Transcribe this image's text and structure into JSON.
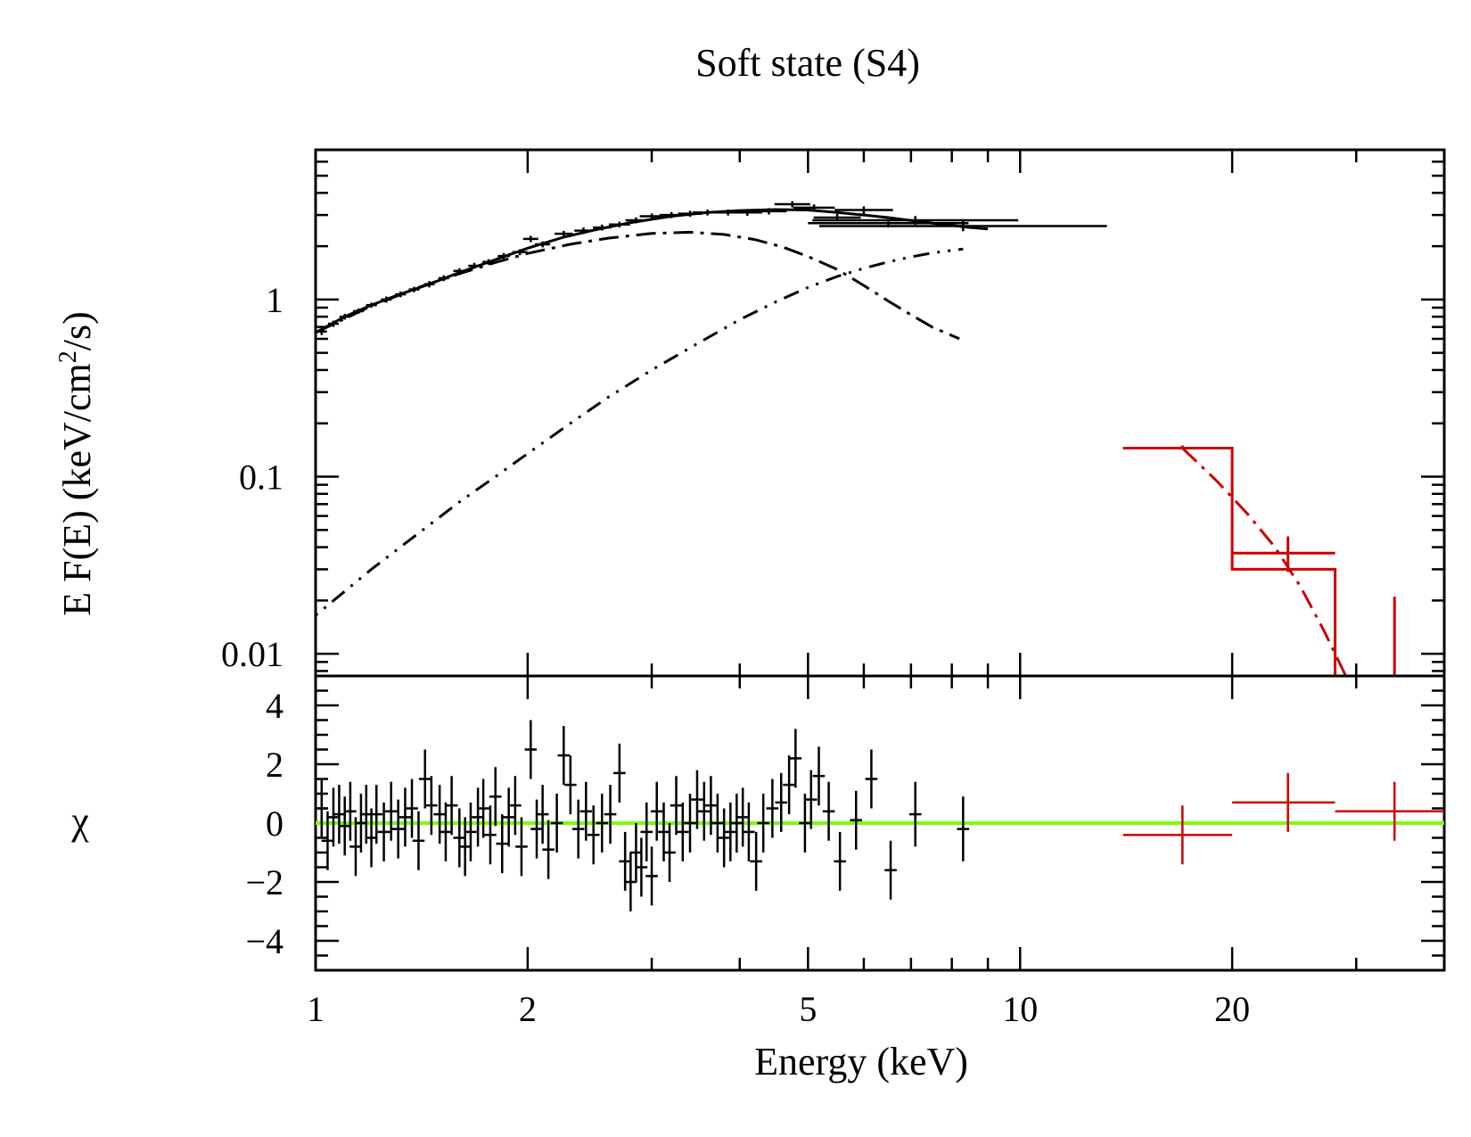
{
  "chart_data": {
    "title": "Soft state (S4)",
    "xlabel": "Energy (keV)",
    "x_scale": "log",
    "xlim": [
      1,
      40
    ],
    "x_ticks": [
      {
        "value": 1,
        "label": "1"
      },
      {
        "value": 2,
        "label": "2"
      },
      {
        "value": 5,
        "label": "5"
      },
      {
        "value": 10,
        "label": "10"
      },
      {
        "value": 20,
        "label": "20"
      }
    ],
    "panels": [
      {
        "id": "spectrum",
        "type": "line",
        "ylabel_main": "E F(E) (keV/cm",
        "ylabel_sup": "2",
        "ylabel_tail": "/s)",
        "y_scale": "log",
        "ylim": [
          0.0075,
          7.0
        ],
        "y_ticks": [
          {
            "value": 0.01,
            "label": "0.01"
          },
          {
            "value": 0.1,
            "label": "0.1"
          },
          {
            "value": 1,
            "label": "1"
          }
        ],
        "series": [
          {
            "role": "data",
            "color": "#000000",
            "points": [
              [
                1.02,
                0.66,
                0.01,
                0.03
              ],
              [
                1.06,
                0.73,
                0.01,
                0.03
              ],
              [
                1.1,
                0.8,
                0.01,
                0.03
              ],
              [
                1.15,
                0.86,
                0.01,
                0.03
              ],
              [
                1.2,
                0.93,
                0.01,
                0.03
              ],
              [
                1.26,
                1.0,
                0.015,
                0.04
              ],
              [
                1.32,
                1.07,
                0.015,
                0.04
              ],
              [
                1.38,
                1.14,
                0.015,
                0.04
              ],
              [
                1.45,
                1.22,
                0.015,
                0.05
              ],
              [
                1.52,
                1.32,
                0.015,
                0.05
              ],
              [
                1.6,
                1.45,
                0.02,
                0.05
              ],
              [
                1.68,
                1.55,
                0.02,
                0.06
              ],
              [
                1.76,
                1.63,
                0.02,
                0.06
              ],
              [
                1.85,
                1.76,
                0.02,
                0.07
              ],
              [
                1.95,
                1.85,
                0.025,
                0.07
              ],
              [
                2.02,
                2.2,
                0.025,
                0.09
              ],
              [
                2.1,
                2.05,
                0.025,
                0.08
              ],
              [
                2.25,
                2.35,
                0.03,
                0.09
              ],
              [
                2.4,
                2.45,
                0.03,
                0.1
              ],
              [
                2.55,
                2.55,
                0.03,
                0.1
              ],
              [
                2.7,
                2.65,
                0.035,
                0.1
              ],
              [
                2.85,
                2.8,
                0.035,
                0.11
              ],
              [
                3.0,
                2.95,
                0.04,
                0.11
              ],
              [
                3.2,
                3.0,
                0.04,
                0.12
              ],
              [
                3.4,
                3.05,
                0.04,
                0.12
              ],
              [
                3.6,
                3.1,
                0.05,
                0.12
              ],
              [
                3.85,
                3.1,
                0.05,
                0.12
              ],
              [
                4.1,
                3.1,
                0.05,
                0.13
              ],
              [
                4.4,
                3.15,
                0.06,
                0.13
              ],
              [
                4.75,
                3.45,
                0.06,
                0.14
              ],
              [
                5.1,
                3.3,
                0.07,
                0.14
              ],
              [
                5.5,
                2.9,
                0.08,
                0.14
              ],
              [
                6.0,
                3.2,
                0.1,
                0.16
              ],
              [
                6.5,
                2.7,
                0.3,
                0.15
              ],
              [
                7.1,
                2.8,
                0.4,
                0.16
              ],
              [
                8.3,
                2.6,
                0.6,
                0.17
              ]
            ]
          },
          {
            "role": "total_model",
            "color": "#000000",
            "style": "solid",
            "points": [
              [
                1.0,
                0.65
              ],
              [
                1.1,
                0.8
              ],
              [
                1.2,
                0.93
              ],
              [
                1.3,
                1.05
              ],
              [
                1.45,
                1.22
              ],
              [
                1.6,
                1.42
              ],
              [
                1.8,
                1.68
              ],
              [
                2.0,
                1.95
              ],
              [
                2.25,
                2.25
              ],
              [
                2.5,
                2.48
              ],
              [
                2.8,
                2.72
              ],
              [
                3.2,
                2.95
              ],
              [
                3.6,
                3.1
              ],
              [
                4.0,
                3.18
              ],
              [
                4.5,
                3.22
              ],
              [
                5.0,
                3.2
              ],
              [
                5.5,
                3.1
              ],
              [
                6.0,
                3.0
              ],
              [
                6.5,
                2.9
              ],
              [
                7.5,
                2.7
              ],
              [
                8.5,
                2.55
              ],
              [
                9.0,
                2.5
              ]
            ]
          },
          {
            "role": "disk_component",
            "color": "#000000",
            "style": "dash-dot",
            "points": [
              [
                1.0,
                0.65
              ],
              [
                1.2,
                0.92
              ],
              [
                1.4,
                1.17
              ],
              [
                1.6,
                1.4
              ],
              [
                1.8,
                1.62
              ],
              [
                2.0,
                1.82
              ],
              [
                2.3,
                2.05
              ],
              [
                2.6,
                2.22
              ],
              [
                3.0,
                2.36
              ],
              [
                3.4,
                2.4
              ],
              [
                3.8,
                2.33
              ],
              [
                4.2,
                2.18
              ],
              [
                4.6,
                1.98
              ],
              [
                5.0,
                1.75
              ],
              [
                5.5,
                1.48
              ],
              [
                6.0,
                1.2
              ],
              [
                6.5,
                0.98
              ],
              [
                7.0,
                0.82
              ],
              [
                7.5,
                0.7
              ],
              [
                8.2,
                0.6
              ]
            ]
          },
          {
            "role": "comptonization_component",
            "color": "#000000",
            "style": "dotted",
            "points": [
              [
                1.0,
                0.0165
              ],
              [
                1.2,
                0.03
              ],
              [
                1.4,
                0.048
              ],
              [
                1.6,
                0.072
              ],
              [
                1.8,
                0.1
              ],
              [
                2.0,
                0.135
              ],
              [
                2.3,
                0.2
              ],
              [
                2.6,
                0.28
              ],
              [
                3.0,
                0.4
              ],
              [
                3.5,
                0.57
              ],
              [
                4.0,
                0.77
              ],
              [
                4.5,
                0.97
              ],
              [
                5.0,
                1.17
              ],
              [
                5.5,
                1.35
              ],
              [
                6.0,
                1.5
              ],
              [
                6.5,
                1.63
              ],
              [
                7.0,
                1.74
              ],
              [
                7.5,
                1.83
              ],
              [
                8.3,
                1.93
              ]
            ]
          },
          {
            "role": "hard_xray_data",
            "color": "#cc0000",
            "points": [
              [
                17,
                0.145,
                3,
                0.0,
                0.005
              ],
              [
                24,
                0.037,
                4,
                0.008,
                0.009
              ],
              [
                34,
                0.0,
                0,
                0.0,
                0.0
              ]
            ]
          },
          {
            "role": "hard_xray_model_steps",
            "color": "#cc0000",
            "style": "solid",
            "bins": [
              [
                14,
                20,
                0.145
              ],
              [
                20,
                28,
                0.03
              ],
              [
                28,
                40,
                0.0075
              ]
            ]
          },
          {
            "role": "hard_xray_model_curve",
            "color": "#cc0000",
            "style": "dash-dot",
            "points": [
              [
                17,
                0.145
              ],
              [
                19,
                0.095
              ],
              [
                21,
                0.062
              ],
              [
                23,
                0.04
              ],
              [
                25,
                0.024
              ],
              [
                27,
                0.0135
              ],
              [
                29,
                0.0075
              ]
            ]
          }
        ]
      },
      {
        "id": "residuals",
        "type": "scatter",
        "ylabel": "χ",
        "y_scale": "linear",
        "ylim": [
          -5,
          5
        ],
        "y_ticks": [
          {
            "value": -4,
            "label": "−4"
          },
          {
            "value": -2,
            "label": "−2"
          },
          {
            "value": 0,
            "label": "0"
          },
          {
            "value": 2,
            "label": "2"
          },
          {
            "value": 4,
            "label": "4"
          }
        ],
        "zero_line_color": "#7cfc00",
        "series": [
          {
            "role": "residuals",
            "color": "#000000",
            "points": [
              [
                1.02,
                0.5
              ],
              [
                1.04,
                -0.6
              ],
              [
                1.06,
                0.2
              ],
              [
                1.08,
                0.3
              ],
              [
                1.1,
                -0.1
              ],
              [
                1.12,
                0.4
              ],
              [
                1.14,
                -0.8
              ],
              [
                1.16,
                0.0
              ],
              [
                1.18,
                0.3
              ],
              [
                1.2,
                -0.5
              ],
              [
                1.22,
                0.3
              ],
              [
                1.25,
                -0.3
              ],
              [
                1.28,
                0.4
              ],
              [
                1.31,
                -0.2
              ],
              [
                1.34,
                0.2
              ],
              [
                1.37,
                0.5
              ],
              [
                1.4,
                -0.6
              ],
              [
                1.43,
                1.5
              ],
              [
                1.46,
                0.6
              ],
              [
                1.5,
                0.3
              ],
              [
                1.53,
                -0.3
              ],
              [
                1.56,
                0.6
              ],
              [
                1.6,
                -0.5
              ],
              [
                1.63,
                -0.8
              ],
              [
                1.66,
                -0.3
              ],
              [
                1.7,
                0.2
              ],
              [
                1.73,
                0.5
              ],
              [
                1.77,
                -0.4
              ],
              [
                1.8,
                0.9
              ],
              [
                1.84,
                -0.7
              ],
              [
                1.88,
                0.2
              ],
              [
                1.92,
                0.6
              ],
              [
                1.96,
                -0.8
              ],
              [
                2.02,
                2.5
              ],
              [
                2.06,
                -0.2
              ],
              [
                2.1,
                0.3
              ],
              [
                2.14,
                -0.9
              ],
              [
                2.2,
                0.0
              ],
              [
                2.25,
                2.3
              ],
              [
                2.3,
                1.3
              ],
              [
                2.36,
                -0.2
              ],
              [
                2.42,
                0.4
              ],
              [
                2.48,
                -0.4
              ],
              [
                2.55,
                0.0
              ],
              [
                2.62,
                0.3
              ],
              [
                2.7,
                1.7
              ],
              [
                2.75,
                -1.3
              ],
              [
                2.8,
                -2.0
              ],
              [
                2.85,
                -1.0
              ],
              [
                2.9,
                -1.5
              ],
              [
                2.95,
                -0.3
              ],
              [
                3.0,
                -1.8
              ],
              [
                3.05,
                0.4
              ],
              [
                3.12,
                -0.3
              ],
              [
                3.18,
                -1.0
              ],
              [
                3.25,
                0.6
              ],
              [
                3.32,
                -0.3
              ],
              [
                3.4,
                0.0
              ],
              [
                3.48,
                0.8
              ],
              [
                3.56,
                0.4
              ],
              [
                3.64,
                0.6
              ],
              [
                3.72,
                0.0
              ],
              [
                3.8,
                -0.5
              ],
              [
                3.88,
                -0.3
              ],
              [
                3.96,
                0.0
              ],
              [
                4.04,
                0.2
              ],
              [
                4.12,
                -0.3
              ],
              [
                4.22,
                -1.3
              ],
              [
                4.32,
                0.0
              ],
              [
                4.45,
                0.5
              ],
              [
                4.58,
                0.7
              ],
              [
                4.7,
                1.3
              ],
              [
                4.8,
                2.2
              ],
              [
                4.95,
                0.0
              ],
              [
                5.05,
                0.8
              ],
              [
                5.18,
                1.6
              ],
              [
                5.35,
                0.4
              ],
              [
                5.55,
                -1.3
              ],
              [
                5.85,
                0.1
              ],
              [
                6.15,
                1.5
              ],
              [
                6.55,
                -1.6
              ],
              [
                7.1,
                0.3
              ],
              [
                8.3,
                -0.2
              ],
              [
                17,
                -0.4
              ],
              [
                24,
                0.7
              ],
              [
                34,
                0.4
              ]
            ]
          }
        ]
      }
    ]
  }
}
